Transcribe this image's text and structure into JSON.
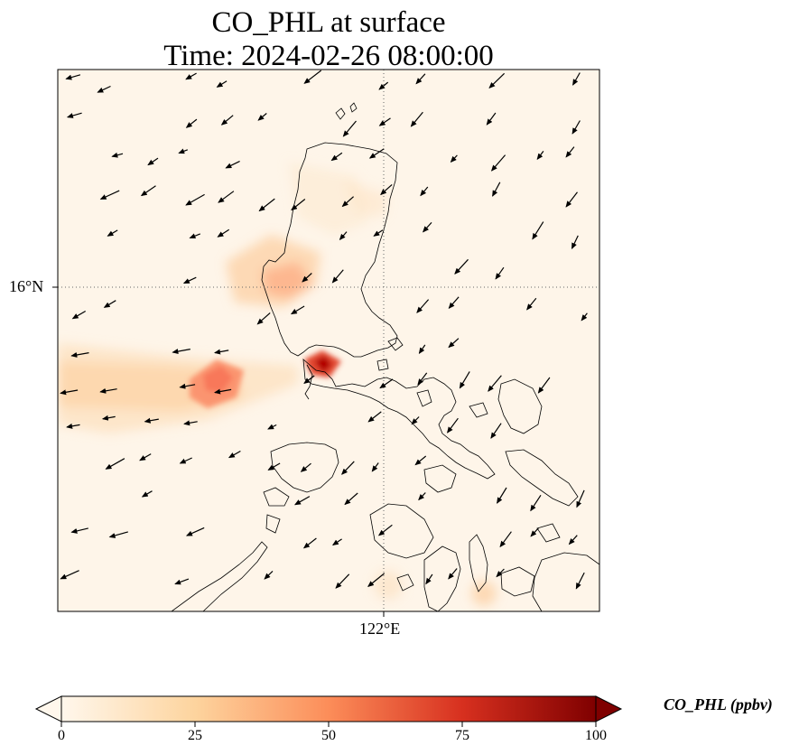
{
  "title": {
    "line1": "CO_PHL at surface",
    "line2": "Time: 2024-02-26 08:00:00"
  },
  "map": {
    "variable": "CO_PHL",
    "level": "surface",
    "gridlines": {
      "latitude_label": "16°N",
      "longitude_label": "122°E",
      "style": "dotted"
    },
    "features": [
      "coastlines",
      "wind-vectors",
      "concentration-field"
    ],
    "concentration_hotspots": [
      {
        "area": "north of Manila Bay",
        "value_ppbv": 80
      },
      {
        "area": "offshore west of Luzon",
        "value_ppbv": 45
      },
      {
        "area": "western Luzon coast near 16°N",
        "value_ppbv": 35
      },
      {
        "area": "northern Luzon",
        "value_ppbv": 10
      },
      {
        "area": "central Visayas",
        "value_ppbv": 20
      }
    ]
  },
  "colorbar": {
    "label": "CO_PHL (ppbv)",
    "ticks": [
      "0",
      "25",
      "50",
      "75",
      "100"
    ],
    "colormap": "OrRd",
    "colors": [
      "#fff7ec",
      "#fdd49e",
      "#fc8d59",
      "#d7301f",
      "#7f0000"
    ],
    "extend": "both"
  }
}
